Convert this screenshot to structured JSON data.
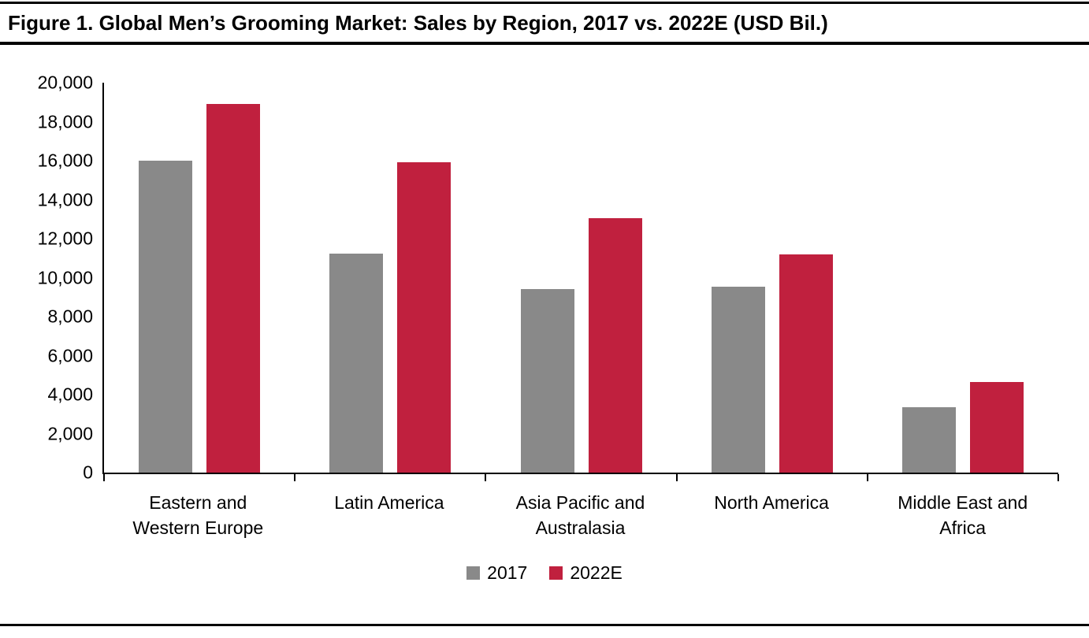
{
  "figure": {
    "title": "Figure 1. Global Men’s Grooming Market: Sales by Region, 2017 vs. 2022E (USD Bil.)"
  },
  "chart_data": {
    "type": "bar",
    "title": "Global Men's Grooming Market: Sales by Region, 2017 vs. 2022E (USD Bil.)",
    "categories": [
      "Eastern and Western Europe",
      "Latin America",
      "Asia Pacific and Australasia",
      "North America",
      "Middle East and Africa"
    ],
    "series": [
      {
        "name": "2017",
        "color": "#898989",
        "values": [
          16000,
          11250,
          9400,
          9550,
          3350
        ]
      },
      {
        "name": "2022E",
        "color": "#C0203E",
        "values": [
          18900,
          15900,
          13050,
          11200,
          4650
        ]
      }
    ],
    "xlabel": "",
    "ylabel": "",
    "ylim": [
      0,
      20000
    ],
    "ytick_step": 2000,
    "grid": false,
    "legend_position": "bottom"
  }
}
